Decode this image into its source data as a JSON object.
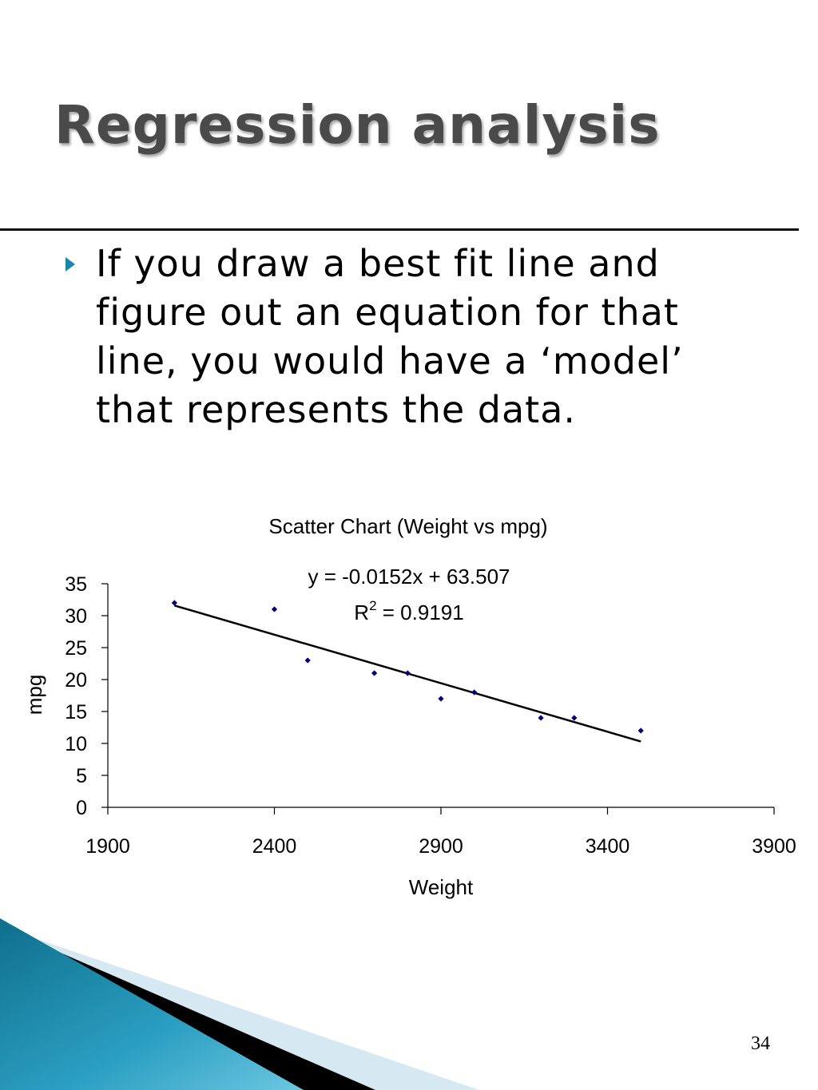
{
  "slide": {
    "title": "Regression analysis",
    "bullet": "If you draw a best fit line and figure out an equation for that line, you would have a ‘model’ that represents the data.",
    "page_number": "34",
    "accent_color": "#1a87a8"
  },
  "chart_data": {
    "type": "scatter",
    "title": "Scatter Chart (Weight vs mpg)",
    "xlabel": "Weight",
    "ylabel": "mpg",
    "xlim": [
      1900,
      3900
    ],
    "ylim": [
      0,
      35
    ],
    "x_ticks": [
      1900,
      2400,
      2900,
      3400,
      3900
    ],
    "y_ticks": [
      0,
      5,
      10,
      15,
      20,
      25,
      30,
      35
    ],
    "grid": false,
    "legend": "none",
    "series": [
      {
        "points": [
          {
            "x": 2100,
            "y": 32
          },
          {
            "x": 2400,
            "y": 31
          },
          {
            "x": 2500,
            "y": 23
          },
          {
            "x": 2700,
            "y": 21
          },
          {
            "x": 2800,
            "y": 21
          },
          {
            "x": 2900,
            "y": 17
          },
          {
            "x": 3000,
            "y": 18
          },
          {
            "x": 3200,
            "y": 14
          },
          {
            "x": 3300,
            "y": 14
          },
          {
            "x": 3500,
            "y": 12
          }
        ],
        "color": "#00007a"
      }
    ],
    "trendline": {
      "slope": -0.0152,
      "intercept": 63.507,
      "x_start": 2100,
      "x_end": 3500,
      "equation_label": "y = -0.0152x + 63.507",
      "r2_prefix": "R",
      "r2_superscript": "2",
      "r2_value": " = 0.9191"
    }
  }
}
